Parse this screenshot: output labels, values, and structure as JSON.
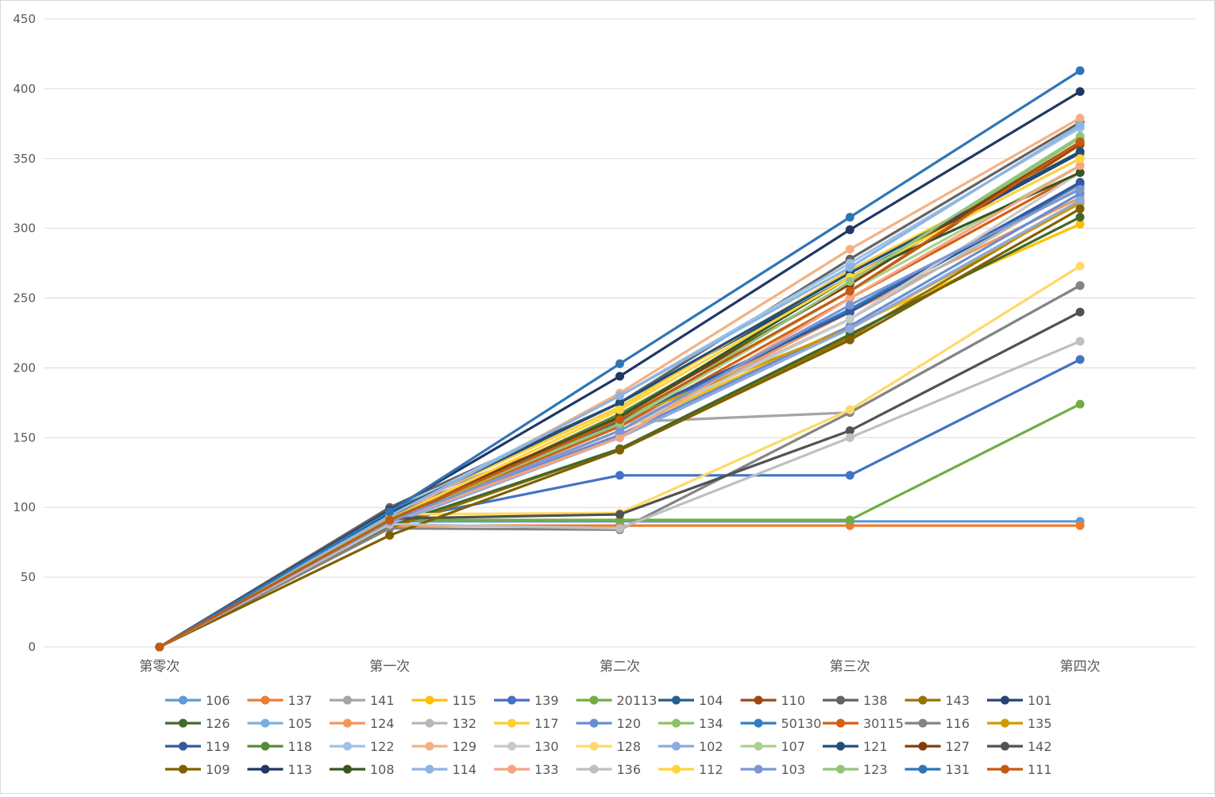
{
  "chart_data": {
    "type": "line",
    "title": "",
    "xlabel": "",
    "ylabel": "",
    "categories": [
      "第零次",
      "第一次",
      "第二次",
      "第三次",
      "第四次"
    ],
    "ylim": [
      0,
      450
    ],
    "yticks": [
      0,
      50,
      100,
      150,
      200,
      250,
      300,
      350,
      400,
      450
    ],
    "grid": true,
    "legend_position": "bottom",
    "series": [
      {
        "name": "106",
        "color": "#5B9BD5",
        "values": [
          0,
          90,
          90,
          90,
          90
        ]
      },
      {
        "name": "137",
        "color": "#ED7D31",
        "values": [
          0,
          87,
          87,
          87,
          87
        ]
      },
      {
        "name": "141",
        "color": "#A5A5A5",
        "values": [
          0,
          99,
          161,
          168,
          259
        ]
      },
      {
        "name": "115",
        "color": "#FFC000",
        "values": [
          0,
          90,
          155,
          230,
          303
        ]
      },
      {
        "name": "139",
        "color": "#4472C4",
        "values": [
          0,
          90,
          123,
          123,
          206
        ]
      },
      {
        "name": "20113",
        "color": "#70AD47",
        "values": [
          0,
          91,
          91,
          91,
          174
        ]
      },
      {
        "name": "104",
        "color": "#255E91",
        "values": [
          0,
          95,
          160,
          240,
          330
        ]
      },
      {
        "name": "110",
        "color": "#9E480E",
        "values": [
          0,
          92,
          162,
          255,
          360
        ]
      },
      {
        "name": "138",
        "color": "#636363",
        "values": [
          0,
          100,
          175,
          278,
          376
        ]
      },
      {
        "name": "143",
        "color": "#997300",
        "values": [
          0,
          85,
          142,
          222,
          320
        ]
      },
      {
        "name": "101",
        "color": "#264478",
        "values": [
          0,
          97,
          175,
          265,
          354
        ]
      },
      {
        "name": "126",
        "color": "#43682B",
        "values": [
          0,
          87,
          142,
          224,
          308
        ]
      },
      {
        "name": "105",
        "color": "#7CAFDD",
        "values": [
          0,
          92,
          165,
          265,
          350
        ]
      },
      {
        "name": "124",
        "color": "#F1975A",
        "values": [
          0,
          88,
          155,
          240,
          322
        ]
      },
      {
        "name": "132",
        "color": "#B7B7B7",
        "values": [
          0,
          90,
          158,
          235,
          330
        ]
      },
      {
        "name": "117",
        "color": "#FFCD33",
        "values": [
          0,
          96,
          172,
          270,
          355
        ]
      },
      {
        "name": "120",
        "color": "#698ED0",
        "values": [
          0,
          90,
          152,
          230,
          325
        ]
      },
      {
        "name": "134",
        "color": "#8CC168",
        "values": [
          0,
          91,
          165,
          260,
          365
        ]
      },
      {
        "name": "50130",
        "color": "#327DC2",
        "values": [
          0,
          92,
          160,
          242,
          332
        ]
      },
      {
        "name": "30115",
        "color": "#D26012",
        "values": [
          0,
          91,
          158,
          250,
          340
        ]
      },
      {
        "name": "116",
        "color": "#848484",
        "values": [
          0,
          85,
          84,
          168,
          259
        ]
      },
      {
        "name": "135",
        "color": "#CC9A00",
        "values": [
          0,
          88,
          163,
          228,
          318
        ]
      },
      {
        "name": "119",
        "color": "#335AA1",
        "values": [
          0,
          95,
          162,
          240,
          333
        ]
      },
      {
        "name": "118",
        "color": "#5A8A39",
        "values": [
          0,
          90,
          167,
          260,
          362
        ]
      },
      {
        "name": "122",
        "color": "#9DC3E6",
        "values": [
          0,
          96,
          180,
          275,
          372
        ]
      },
      {
        "name": "129",
        "color": "#F4B183",
        "values": [
          0,
          92,
          182,
          285,
          379
        ]
      },
      {
        "name": "130",
        "color": "#C9C9C9",
        "values": [
          0,
          90,
          155,
          235,
          340
        ]
      },
      {
        "name": "128",
        "color": "#FFD966",
        "values": [
          0,
          95,
          96,
          170,
          273
        ]
      },
      {
        "name": "102",
        "color": "#8FAADC",
        "values": [
          0,
          88,
          150,
          228,
          320
        ]
      },
      {
        "name": "107",
        "color": "#A9D18E",
        "values": [
          0,
          92,
          160,
          255,
          345
        ]
      },
      {
        "name": "121",
        "color": "#1F4E79",
        "values": [
          0,
          96,
          175,
          268,
          355
        ]
      },
      {
        "name": "127",
        "color": "#843C0C",
        "values": [
          0,
          93,
          165,
          260,
          362
        ]
      },
      {
        "name": "142",
        "color": "#525252",
        "values": [
          0,
          92,
          95,
          155,
          240
        ]
      },
      {
        "name": "109",
        "color": "#7F6000",
        "values": [
          0,
          80,
          141,
          220,
          314
        ]
      },
      {
        "name": "113",
        "color": "#203864",
        "values": [
          0,
          98,
          194,
          299,
          398
        ]
      },
      {
        "name": "108",
        "color": "#375623",
        "values": [
          0,
          90,
          165,
          265,
          340
        ]
      },
      {
        "name": "114",
        "color": "#8DB4E2",
        "values": [
          0,
          94,
          180,
          272,
          374
        ]
      },
      {
        "name": "133",
        "color": "#F4A582",
        "values": [
          0,
          90,
          150,
          250,
          345
        ]
      },
      {
        "name": "136",
        "color": "#BFBFBF",
        "values": [
          0,
          88,
          85,
          150,
          219
        ]
      },
      {
        "name": "112",
        "color": "#FFD43B",
        "values": [
          0,
          92,
          170,
          265,
          350
        ]
      },
      {
        "name": "103",
        "color": "#7B96D4",
        "values": [
          0,
          90,
          155,
          245,
          328
        ]
      },
      {
        "name": "123",
        "color": "#93C47D",
        "values": [
          0,
          92,
          160,
          262,
          366
        ]
      },
      {
        "name": "131",
        "color": "#2E75B6",
        "values": [
          0,
          97,
          203,
          308,
          413
        ]
      },
      {
        "name": "111",
        "color": "#C55A11",
        "values": [
          0,
          91,
          163,
          255,
          362
        ]
      }
    ]
  }
}
